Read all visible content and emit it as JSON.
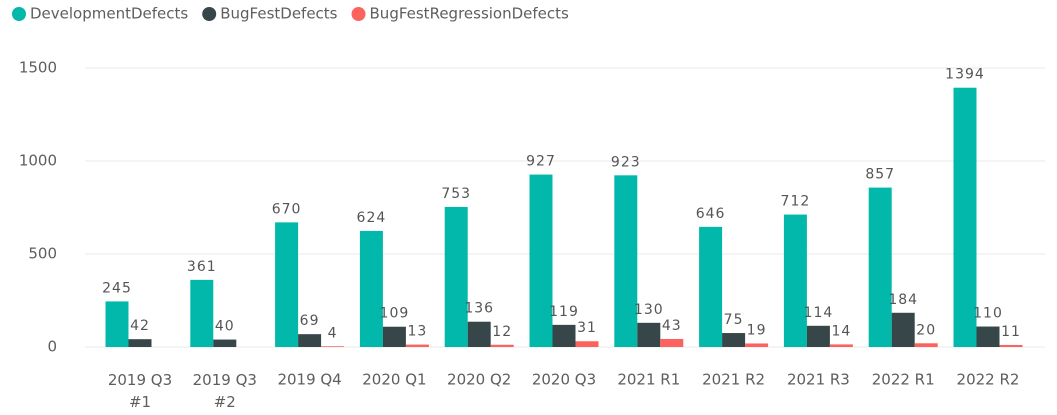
{
  "chart_data": {
    "type": "bar",
    "categories": [
      "2019 Q3 #1",
      "2019 Q3 #2",
      "2019 Q4",
      "2020 Q1",
      "2020 Q2",
      "2020 Q3",
      "2021 R1",
      "2021 R2",
      "2021 R3",
      "2022 R1",
      "2022 R2"
    ],
    "series": [
      {
        "name": "DevelopmentDefects",
        "color": "#01b8aa",
        "values": [
          245,
          361,
          670,
          624,
          753,
          927,
          923,
          646,
          712,
          857,
          1394
        ]
      },
      {
        "name": "BugFestDefects",
        "color": "#374649",
        "values": [
          42,
          40,
          69,
          109,
          136,
          119,
          130,
          75,
          114,
          184,
          110
        ]
      },
      {
        "name": "BugFestRegressionDefects",
        "color": "#fd625e",
        "values": [
          null,
          null,
          4,
          13,
          12,
          31,
          43,
          19,
          14,
          20,
          11
        ]
      }
    ],
    "ylim": [
      0,
      1500
    ],
    "yticks": [
      0,
      500,
      1000,
      1500
    ],
    "grid": true,
    "legend": "top-left"
  }
}
